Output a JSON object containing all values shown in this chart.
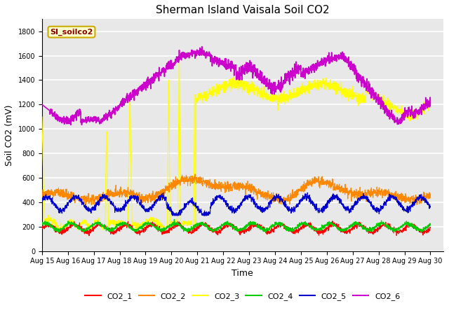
{
  "title": "Sherman Island Vaisala Soil CO2",
  "xlabel": "Time",
  "ylabel": "Soil CO2 (mV)",
  "ylim": [
    0,
    1900
  ],
  "yticks": [
    0,
    200,
    400,
    600,
    800,
    1000,
    1200,
    1400,
    1600,
    1800
  ],
  "xlim": [
    0,
    15.5
  ],
  "xtick_labels": [
    "Aug 15",
    "Aug 16",
    "Aug 17",
    "Aug 18",
    "Aug 19",
    "Aug 20",
    "Aug 21",
    "Aug 22",
    "Aug 23",
    "Aug 24",
    "Aug 25",
    "Aug 26",
    "Aug 27",
    "Aug 28",
    "Aug 29",
    "Aug 30"
  ],
  "colors": {
    "CO2_1": "#ff0000",
    "CO2_2": "#ff8800",
    "CO2_3": "#ffff00",
    "CO2_4": "#00cc00",
    "CO2_5": "#0000cc",
    "CO2_6": "#cc00cc"
  },
  "legend_label": "SI_soilco2",
  "axes_bg": "#e8e8e8",
  "grid_color": "#ffffff",
  "title_fontsize": 11,
  "label_fontsize": 9,
  "tick_fontsize": 7
}
